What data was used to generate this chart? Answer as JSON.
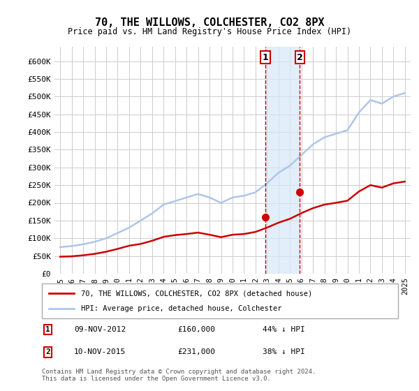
{
  "title": "70, THE WILLOWS, COLCHESTER, CO2 8PX",
  "subtitle": "Price paid vs. HM Land Registry's House Price Index (HPI)",
  "xlabel": "",
  "ylabel": "",
  "ylim": [
    0,
    620000
  ],
  "yticks": [
    0,
    50000,
    100000,
    150000,
    200000,
    250000,
    300000,
    350000,
    400000,
    450000,
    500000,
    550000,
    600000
  ],
  "ytick_labels": [
    "£0",
    "£50K",
    "£100K",
    "£150K",
    "£200K",
    "£250K",
    "£300K",
    "£350K",
    "£400K",
    "£450K",
    "£500K",
    "£550K",
    "£600K"
  ],
  "background_color": "#ffffff",
  "plot_bg_color": "#ffffff",
  "grid_color": "#cccccc",
  "hpi_color": "#aec6e8",
  "price_color": "#cc0000",
  "marker_color": "#cc0000",
  "shade_color": "#d6e8f7",
  "vline_color": "#cc0000",
  "sale1_date": "09-NOV-2012",
  "sale1_price": 160000,
  "sale1_label": "44% ↓ HPI",
  "sale2_date": "10-NOV-2015",
  "sale2_price": 231000,
  "sale2_label": "38% ↓ HPI",
  "sale1_x": 2012.86,
  "sale2_x": 2015.86,
  "legend_hpi": "HPI: Average price, detached house, Colchester",
  "legend_price": "70, THE WILLOWS, COLCHESTER, CO2 8PX (detached house)",
  "footnote": "Contains HM Land Registry data © Crown copyright and database right 2024.\nThis data is licensed under the Open Government Licence v3.0.",
  "hpi_years": [
    1995,
    1996,
    1997,
    1998,
    1999,
    2000,
    2001,
    2002,
    2003,
    2004,
    2005,
    2006,
    2007,
    2008,
    2009,
    2010,
    2011,
    2012,
    2013,
    2014,
    2015,
    2016,
    2017,
    2018,
    2019,
    2020,
    2021,
    2022,
    2023,
    2024,
    2025
  ],
  "hpi_values": [
    75000,
    78000,
    83000,
    90000,
    100000,
    115000,
    130000,
    150000,
    170000,
    195000,
    205000,
    215000,
    225000,
    215000,
    200000,
    215000,
    220000,
    230000,
    255000,
    285000,
    305000,
    335000,
    365000,
    385000,
    395000,
    405000,
    455000,
    490000,
    480000,
    500000,
    510000
  ],
  "price_years": [
    1995,
    1996,
    1997,
    1998,
    1999,
    2000,
    2001,
    2002,
    2003,
    2004,
    2005,
    2006,
    2007,
    2008,
    2009,
    2010,
    2011,
    2012,
    2013,
    2014,
    2015,
    2016,
    2017,
    2018,
    2019,
    2020,
    2021,
    2022,
    2023,
    2024,
    2025
  ],
  "price_values": [
    48000,
    49000,
    52000,
    56000,
    62000,
    70000,
    79000,
    84000,
    93000,
    104000,
    109000,
    112000,
    116000,
    110000,
    103000,
    110000,
    112000,
    118000,
    130000,
    144000,
    155000,
    171000,
    185000,
    195000,
    200000,
    206000,
    232000,
    250000,
    243000,
    255000,
    260000
  ]
}
